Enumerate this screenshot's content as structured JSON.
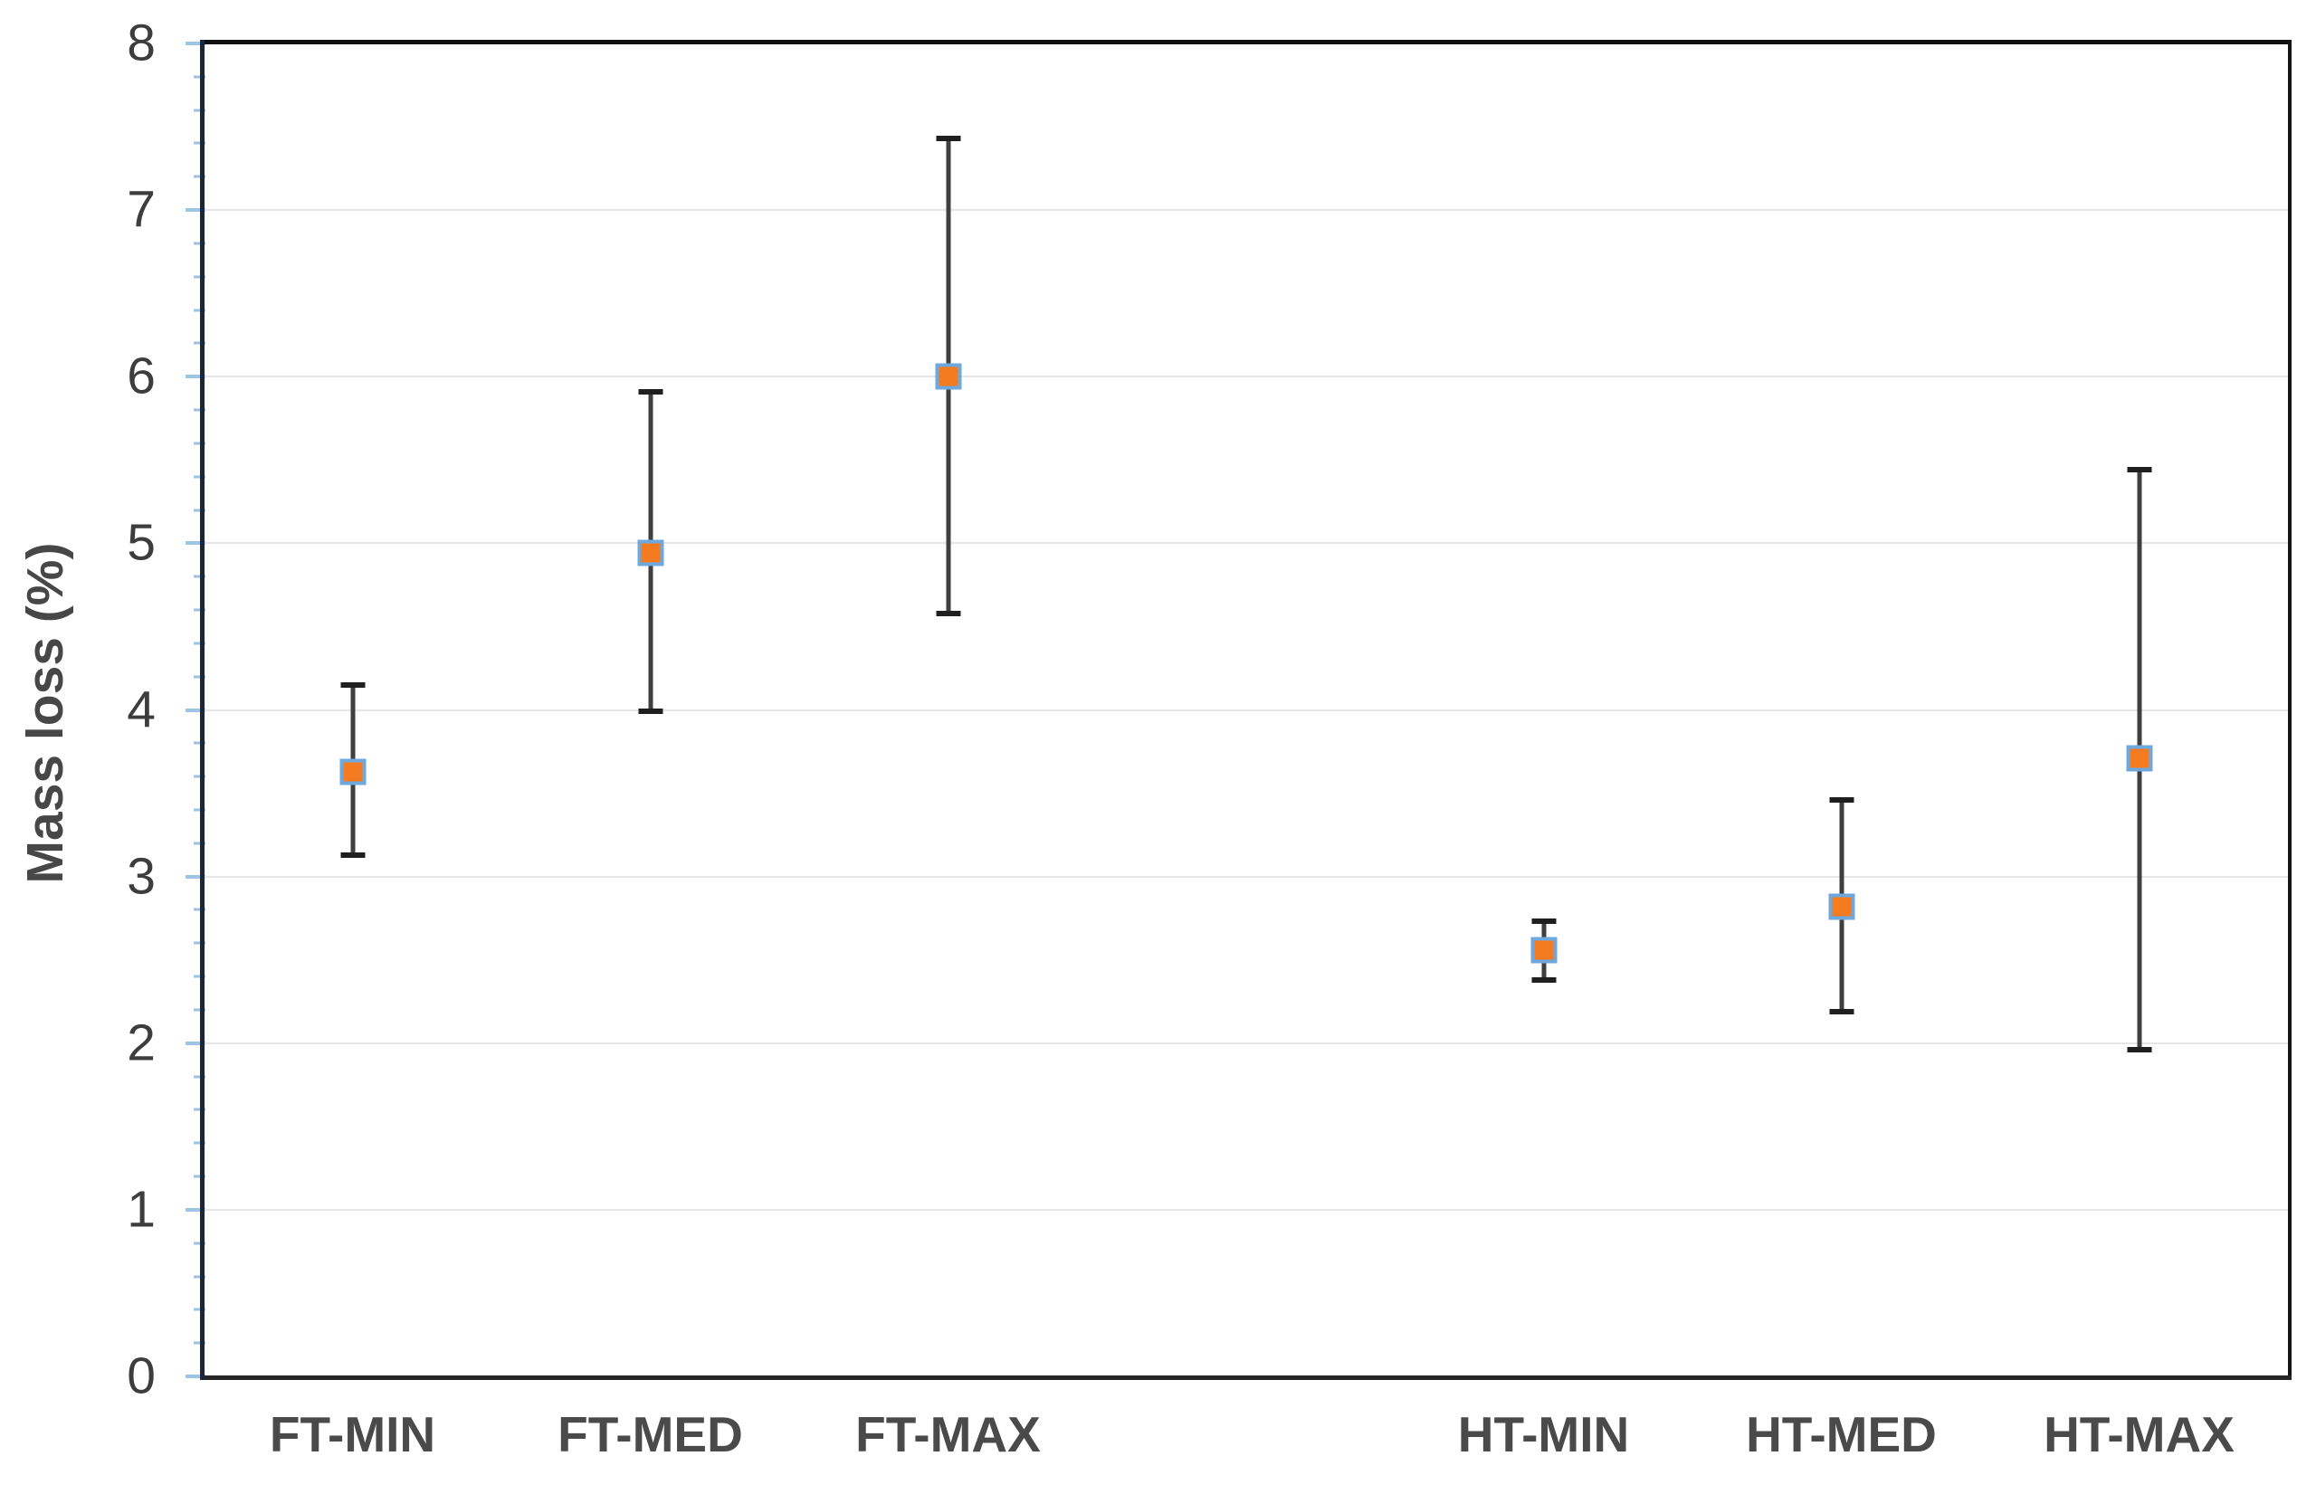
{
  "chart_data": {
    "type": "scatter",
    "title": "",
    "xlabel": "",
    "ylabel": "Mass loss (%)",
    "ylim": [
      0,
      8
    ],
    "y_major_ticks": [
      0,
      1,
      2,
      3,
      4,
      5,
      6,
      7,
      8
    ],
    "y_tick_labels": [
      "0",
      "1",
      "2",
      "3",
      "4",
      "5",
      "6",
      "7",
      "8"
    ],
    "y_minor_tick_step": 0.2,
    "grid": "horizontal-major-only",
    "legend": "none",
    "marker_shape": "square",
    "x_slot_count": 7,
    "x_blank_slot": 3,
    "categories": [
      "FT-MIN",
      "FT-MED",
      "FT-MAX",
      "HT-MIN",
      "HT-MED",
      "HT-MAX"
    ],
    "points": [
      {
        "label": "FT-MIN",
        "slot": 0,
        "value": 3.63,
        "upper": 4.15,
        "lower": 3.13,
        "error_plus": 0.52,
        "error_minus": 0.5
      },
      {
        "label": "FT-MED",
        "slot": 1,
        "value": 4.94,
        "upper": 5.91,
        "lower": 3.99,
        "error_plus": 0.97,
        "error_minus": 0.95
      },
      {
        "label": "FT-MAX",
        "slot": 2,
        "value": 6.0,
        "upper": 7.43,
        "lower": 4.58,
        "error_plus": 1.43,
        "error_minus": 1.42
      },
      {
        "label": "HT-MIN",
        "slot": 4,
        "value": 2.56,
        "upper": 2.73,
        "lower": 2.38,
        "error_plus": 0.17,
        "error_minus": 0.18
      },
      {
        "label": "HT-MED",
        "slot": 5,
        "value": 2.82,
        "upper": 3.46,
        "lower": 2.19,
        "error_plus": 0.64,
        "error_minus": 0.63
      },
      {
        "label": "HT-MAX",
        "slot": 6,
        "value": 3.71,
        "upper": 5.44,
        "lower": 1.96,
        "error_plus": 1.73,
        "error_minus": 1.75
      }
    ],
    "styles": {
      "background": "#ffffff",
      "marker_fill": "#f47b20",
      "marker_border": "#6fa8dc",
      "error_bar_line": "#3f3f3f",
      "error_bar_cap": "#1f1f1f",
      "gridline": "#e6e6e6",
      "frame_top": "#111111",
      "frame_right": "#151515",
      "frame_bottom": "#262626",
      "y_axis_line": "#1b2735",
      "y_axis_tick": "#9dc3e6",
      "y_tick_label_color": "#3d3d3d",
      "x_label_color": "#4a4a4a",
      "ylabel_color": "#474747"
    }
  }
}
